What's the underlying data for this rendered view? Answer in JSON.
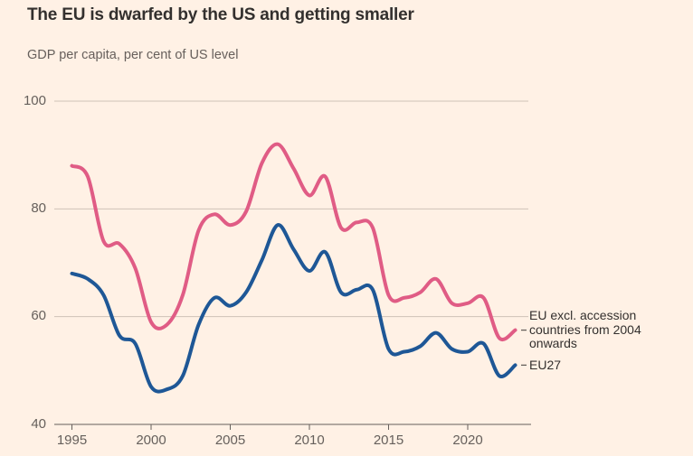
{
  "header": {
    "title": "The EU is dwarfed by the US and getting smaller",
    "subtitle": "GDP per capita, per cent of US level"
  },
  "chart_data": {
    "type": "line",
    "title": "The EU is dwarfed by the US and getting smaller",
    "subtitle": "GDP per capita, per cent of US level",
    "xlabel": "",
    "ylabel": "GDP per capita, per cent of US level",
    "x": [
      1995,
      1996,
      1997,
      1998,
      1999,
      2000,
      2001,
      2002,
      2003,
      2004,
      2005,
      2006,
      2007,
      2008,
      2009,
      2010,
      2011,
      2012,
      2013,
      2014,
      2015,
      2016,
      2017,
      2018,
      2019,
      2020,
      2021,
      2022,
      2023
    ],
    "series": [
      {
        "name": "EU excl. accession countries from 2004 onwards",
        "slug": "eu-excl-accession",
        "label_lines": [
          "EU excl. accession",
          "countries from 2004",
          "onwards"
        ],
        "color": "#E05C85",
        "values": [
          88,
          86,
          74,
          73.5,
          69,
          59,
          58.5,
          64,
          76,
          79,
          77,
          79.5,
          88.5,
          92,
          87.5,
          82.5,
          86,
          76.5,
          77.5,
          76.5,
          64,
          63.5,
          64.5,
          67,
          62.5,
          62.5,
          63.5,
          56,
          57.5
        ]
      },
      {
        "name": "EU27",
        "slug": "eu27",
        "label_lines": [
          "EU27"
        ],
        "color": "#1E5796",
        "values": [
          68,
          67,
          64,
          56.5,
          55,
          47,
          46.5,
          49,
          58.5,
          63.5,
          62,
          64.5,
          70.5,
          77,
          72.5,
          68.5,
          72,
          64.5,
          65,
          65,
          54,
          53.5,
          54.5,
          57,
          54,
          53.5,
          55,
          49,
          51
        ]
      }
    ],
    "yticks": [
      40,
      60,
      80,
      100
    ],
    "xticks": [
      1995,
      2000,
      2005,
      2010,
      2015,
      2020
    ],
    "ylim": [
      40,
      100
    ],
    "xlim": [
      1995,
      2024
    ],
    "grid": "horizontal-only",
    "legend_position": "right-of-line-ends"
  },
  "colors": {
    "background": "#FFF1E5",
    "title_text": "#33302E",
    "subtitle_text": "#66605C",
    "axis_line": "#66605C",
    "tick_text": "#66605C",
    "gridline": "#CFC2B7",
    "series_label_text": "#33302E",
    "label_connector": "#66605C"
  }
}
